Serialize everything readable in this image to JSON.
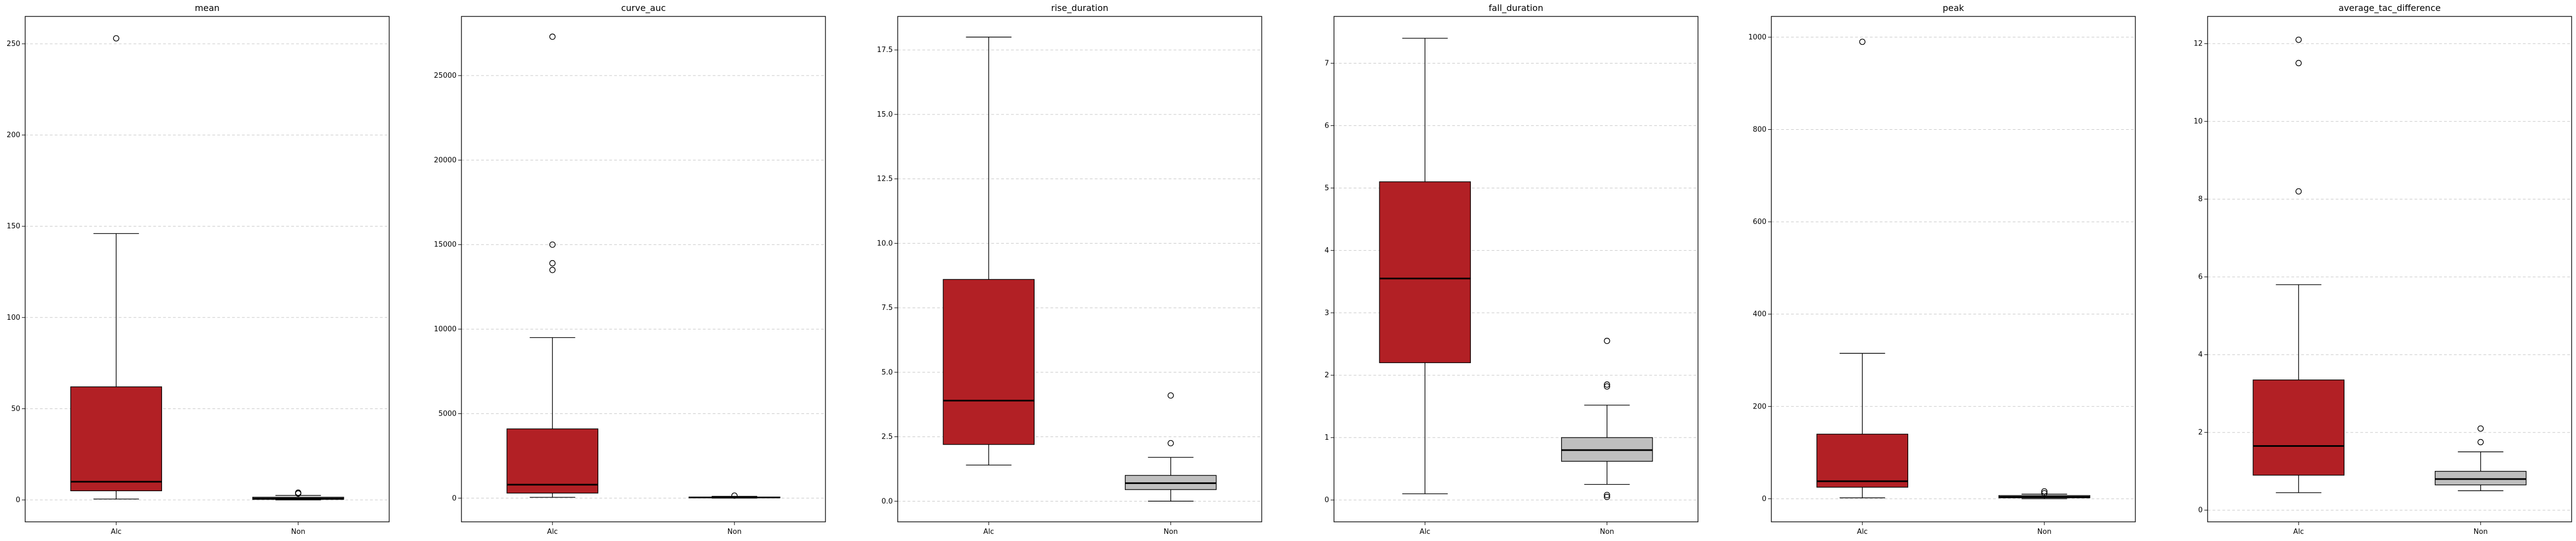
{
  "chart_data": [
    {
      "type": "box",
      "title": "mean",
      "categories": [
        "Alc",
        "Non"
      ],
      "ylim": [
        -12,
        265
      ],
      "yticks": [
        0,
        50,
        100,
        150,
        200,
        250
      ],
      "ytick_labels": [
        "0",
        "50",
        "100",
        "150",
        "200",
        "250"
      ],
      "boxes": [
        {
          "category": "Alc",
          "whisker_low": 0.5,
          "q1": 5,
          "median": 10,
          "q3": 62,
          "whisker_high": 146,
          "outliers": [
            253
          ]
        },
        {
          "category": "Non",
          "whisker_low": 0,
          "q1": 0.3,
          "median": 0.8,
          "q3": 1.5,
          "whisker_high": 2.5,
          "outliers": [
            3.5,
            4
          ]
        }
      ]
    },
    {
      "type": "box",
      "title": "curve_auc",
      "categories": [
        "Alc",
        "Non"
      ],
      "ylim": [
        -1400,
        28500
      ],
      "yticks": [
        0,
        5000,
        10000,
        15000,
        20000,
        25000
      ],
      "ytick_labels": [
        "0",
        "5000",
        "10000",
        "15000",
        "20000",
        "25000"
      ],
      "boxes": [
        {
          "category": "Alc",
          "whisker_low": 50,
          "q1": 300,
          "median": 800,
          "q3": 4100,
          "whisker_high": 9500,
          "outliers": [
            13500,
            13900,
            15000,
            27300
          ]
        },
        {
          "category": "Non",
          "whisker_low": 0,
          "q1": 20,
          "median": 40,
          "q3": 70,
          "whisker_high": 110,
          "outliers": [
            150
          ]
        }
      ]
    },
    {
      "type": "box",
      "title": "rise_duration",
      "categories": [
        "Alc",
        "Non"
      ],
      "ylim": [
        -0.8,
        18.8
      ],
      "yticks": [
        0.0,
        2.5,
        5.0,
        7.5,
        10.0,
        12.5,
        15.0,
        17.5
      ],
      "ytick_labels": [
        "0.0",
        "2.5",
        "5.0",
        "7.5",
        "10.0",
        "12.5",
        "15.0",
        "17.5"
      ],
      "boxes": [
        {
          "category": "Alc",
          "whisker_low": 1.4,
          "q1": 2.2,
          "median": 3.9,
          "q3": 8.6,
          "whisker_high": 18.0,
          "outliers": []
        },
        {
          "category": "Non",
          "whisker_low": 0.0,
          "q1": 0.45,
          "median": 0.7,
          "q3": 1.0,
          "whisker_high": 1.7,
          "outliers": [
            2.25,
            4.1
          ]
        }
      ]
    },
    {
      "type": "box",
      "title": "fall_duration",
      "categories": [
        "Alc",
        "Non"
      ],
      "ylim": [
        -0.35,
        7.75
      ],
      "yticks": [
        0,
        1,
        2,
        3,
        4,
        5,
        6,
        7
      ],
      "ytick_labels": [
        "0",
        "1",
        "2",
        "3",
        "4",
        "5",
        "6",
        "7"
      ],
      "boxes": [
        {
          "category": "Alc",
          "whisker_low": 0.1,
          "q1": 2.2,
          "median": 3.55,
          "q3": 5.1,
          "whisker_high": 7.4,
          "outliers": []
        },
        {
          "category": "Non",
          "whisker_low": 0.25,
          "q1": 0.62,
          "median": 0.8,
          "q3": 1.0,
          "whisker_high": 1.52,
          "outliers": [
            0.05,
            0.08,
            1.82,
            1.85,
            2.55
          ]
        }
      ]
    },
    {
      "type": "box",
      "title": "peak",
      "categories": [
        "Alc",
        "Non"
      ],
      "ylim": [
        -50,
        1045
      ],
      "yticks": [
        0,
        200,
        400,
        600,
        800,
        1000
      ],
      "ytick_labels": [
        "0",
        "200",
        "400",
        "600",
        "800",
        "1000"
      ],
      "boxes": [
        {
          "category": "Alc",
          "whisker_low": 2,
          "q1": 25,
          "median": 38,
          "q3": 140,
          "whisker_high": 315,
          "outliers": [
            990
          ]
        },
        {
          "category": "Non",
          "whisker_low": 0,
          "q1": 2,
          "median": 4,
          "q3": 7,
          "whisker_high": 10,
          "outliers": [
            12,
            16
          ]
        }
      ]
    },
    {
      "type": "box",
      "title": "average_tac_difference",
      "categories": [
        "Alc",
        "Non"
      ],
      "ylim": [
        -0.3,
        12.7
      ],
      "yticks": [
        0,
        2,
        4,
        6,
        8,
        10,
        12
      ],
      "ytick_labels": [
        "0",
        "2",
        "4",
        "6",
        "8",
        "10",
        "12"
      ],
      "boxes": [
        {
          "category": "Alc",
          "whisker_low": 0.45,
          "q1": 0.9,
          "median": 1.65,
          "q3": 3.35,
          "whisker_high": 5.8,
          "outliers": [
            8.2,
            11.5,
            12.1
          ]
        },
        {
          "category": "Non",
          "whisker_low": 0.5,
          "q1": 0.65,
          "median": 0.8,
          "q3": 1.0,
          "whisker_high": 1.5,
          "outliers": [
            1.75,
            2.1
          ]
        }
      ]
    }
  ],
  "colors": {
    "Alc": "#b22025",
    "Non": "#bfbfbf",
    "median": "#000000",
    "grid": "#c8c8c8"
  },
  "grid": "y-dashed"
}
